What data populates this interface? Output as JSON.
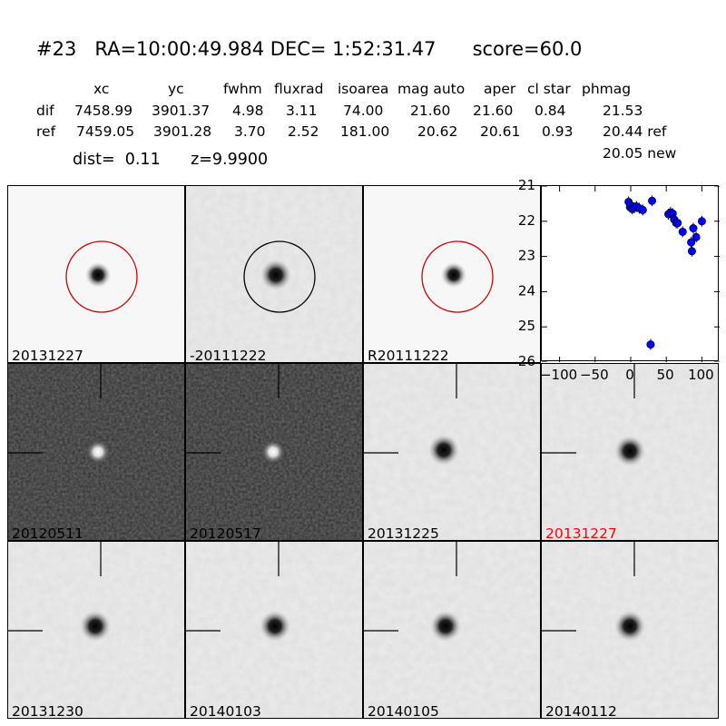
{
  "header": {
    "title": "#23   RA=10:00:49.984 DEC= 1:52:31.47      score=60.0",
    "columns": [
      "xc",
      "yc",
      "fwhm",
      "fluxrad",
      "isoarea",
      "mag auto",
      "aper",
      "cl star",
      "phmag"
    ],
    "dif": {
      "label": "dif",
      "values": [
        "7458.99",
        "3901.37",
        "4.98",
        "3.11",
        "74.00",
        "21.60",
        "21.60",
        "0.84",
        "21.53"
      ]
    },
    "ref": {
      "label": "ref",
      "values": [
        "7459.05",
        "3901.28",
        "3.70",
        "2.52",
        "181.00",
        "20.62",
        "20.61",
        "0.93",
        "20.44 ref"
      ]
    },
    "new_phmag": "20.05 new",
    "dist": "dist=  0.11      z=9.9900"
  },
  "stamps": [
    {
      "label": "20131227",
      "style": "light",
      "marker": "circle-red",
      "label_color": "#000000"
    },
    {
      "label": "-20111222",
      "style": "light-noise",
      "marker": "circle-black",
      "label_color": "#000000"
    },
    {
      "label": "R20111222",
      "style": "light",
      "marker": "circle-red",
      "label_color": "#000000"
    },
    {
      "label": "20120511",
      "style": "dark",
      "marker": "crosshair",
      "label_color": "#000000"
    },
    {
      "label": "20120517",
      "style": "dark",
      "marker": "crosshair",
      "label_color": "#000000"
    },
    {
      "label": "20131225",
      "style": "light-noise",
      "marker": "crosshair",
      "label_color": "#000000"
    },
    {
      "label": "20131227",
      "style": "light-noise",
      "marker": "crosshair",
      "label_color": "#ff0000"
    },
    {
      "label": "20131230",
      "style": "light-noise",
      "marker": "crosshair",
      "label_color": "#000000"
    },
    {
      "label": "20140103",
      "style": "light-noise",
      "marker": "crosshair",
      "label_color": "#000000"
    },
    {
      "label": "20140105",
      "style": "light-noise",
      "marker": "crosshair",
      "label_color": "#000000"
    },
    {
      "label": "20140112",
      "style": "light-noise",
      "marker": "crosshair",
      "label_color": "#000000"
    }
  ],
  "chart_data": {
    "type": "scatter",
    "title": "",
    "xlabel": "",
    "ylabel": "",
    "xlim": [
      -125,
      125
    ],
    "ylim": [
      26,
      21
    ],
    "xticks": [
      "-100",
      "-50",
      "0",
      "50",
      "100"
    ],
    "yticks": [
      "21",
      "22",
      "23",
      "24",
      "25",
      "26"
    ],
    "color": "#0000ff",
    "grid": false,
    "x": [
      -3,
      -1,
      0,
      2,
      5,
      8,
      12,
      17,
      30,
      53,
      56,
      59,
      61,
      64,
      66,
      73,
      85,
      86,
      88,
      92,
      100,
      28
    ],
    "y": [
      21.45,
      21.6,
      21.55,
      21.65,
      21.62,
      21.58,
      21.63,
      21.68,
      21.42,
      21.8,
      21.75,
      21.78,
      21.95,
      22.05,
      22.05,
      22.3,
      22.6,
      22.85,
      22.2,
      22.45,
      22.0,
      25.5
    ]
  }
}
